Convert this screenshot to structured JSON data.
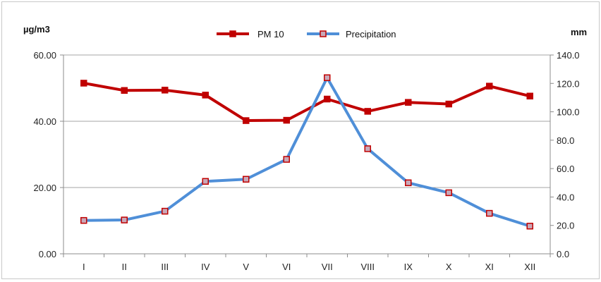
{
  "chart_data": {
    "type": "line",
    "categories": [
      "I",
      "II",
      "III",
      "IV",
      "V",
      "VI",
      "VII",
      "VIII",
      "IX",
      "X",
      "XI",
      "XII"
    ],
    "y_left": {
      "label": "µg/m3",
      "range": [
        0,
        60
      ],
      "ticks": [
        "0.00",
        "20.00",
        "40.00",
        "60.00"
      ]
    },
    "y_right": {
      "label": "mm",
      "range": [
        0,
        140
      ],
      "ticks": [
        "0.0",
        "20.0",
        "40.0",
        "60.0",
        "80.0",
        "100.0",
        "120.0",
        "140.0"
      ]
    },
    "series": [
      {
        "name": "PM 10",
        "axis": "left",
        "color": "#c00000",
        "marker_fill": "#c00000",
        "values": [
          51.5,
          49.3,
          49.4,
          47.9,
          40.2,
          40.3,
          46.7,
          43.0,
          45.7,
          45.2,
          50.6,
          47.6
        ]
      },
      {
        "name": "Precipitation",
        "axis": "right",
        "color": "#4f8fd8",
        "marker_fill": "#c9a8b8",
        "values": [
          23.5,
          23.8,
          30.0,
          51.0,
          52.5,
          66.5,
          124.0,
          74.0,
          50.0,
          43.0,
          28.5,
          19.5
        ]
      }
    ],
    "grid": {
      "horizontal": true,
      "vertical": false
    },
    "legend_position": "top-center"
  }
}
